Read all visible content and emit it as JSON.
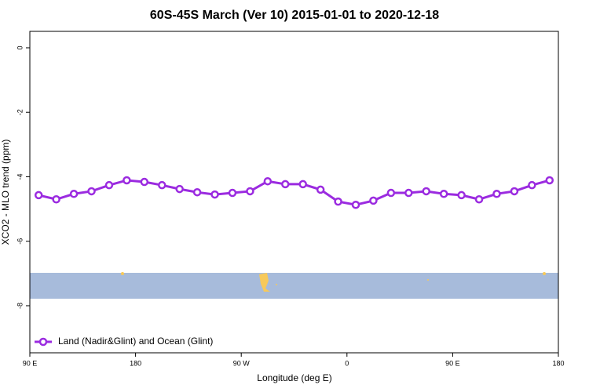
{
  "chart_data": {
    "type": "line",
    "title": "60S-45S March (Ver 10)   2015-01-01 to 2020-12-18",
    "x_label": "Longitude (deg E)",
    "y_label": "XCO2 - MLO trend (ppm)",
    "x": [
      97.5,
      112.5,
      127.5,
      142.5,
      157.5,
      172.5,
      187.5,
      202.5,
      217.5,
      232.5,
      247.5,
      262.5,
      277.5,
      292.5,
      307.5,
      322.5,
      337.5,
      352.5,
      367.5,
      382.5,
      397.5,
      412.5,
      427.5,
      442.5,
      457.5,
      472.5,
      487.5,
      502.5,
      517.5,
      532.5
    ],
    "series": [
      {
        "name": "Land (Nadir&Glint) and Ocean (Glint)",
        "color": "#9b2be0",
        "values": [
          -4.57,
          -4.7,
          -4.53,
          -4.45,
          -4.26,
          -4.11,
          -4.16,
          -4.26,
          -4.38,
          -4.48,
          -4.55,
          -4.5,
          -4.45,
          -4.14,
          -4.23,
          -4.23,
          -4.4,
          -4.77,
          -4.87,
          -4.74,
          -4.5,
          -4.5,
          -4.45,
          -4.53,
          -4.57,
          -4.7,
          -4.53,
          -4.45,
          -4.26,
          -4.11
        ]
      }
    ],
    "xlim": [
      90,
      540
    ],
    "ylim": [
      -9.46,
      0.51
    ],
    "xticks": [
      {
        "value": 90,
        "label": "90 E"
      },
      {
        "value": 180,
        "label": "180"
      },
      {
        "value": 270,
        "label": "90 W"
      },
      {
        "value": 360,
        "label": "0"
      },
      {
        "value": 450,
        "label": "90 E"
      },
      {
        "value": 540,
        "label": "180"
      }
    ],
    "yticks": [
      0,
      -2,
      -4,
      -6,
      -8
    ],
    "legend": "bottom-left"
  }
}
